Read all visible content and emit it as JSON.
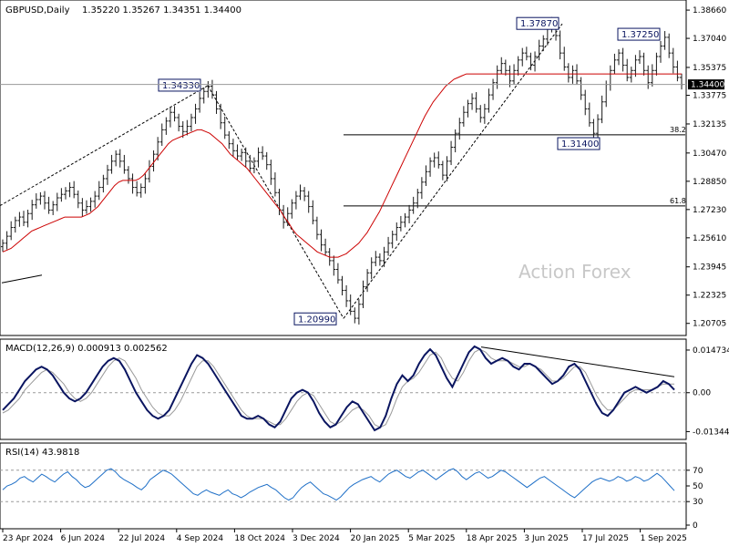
{
  "chart_data": {
    "type": "candlestick",
    "price_panel": {
      "title": "GBPUSD,Daily",
      "ohlc_text": "1.35220 1.35267 1.34351 1.34400",
      "y_ticks": [
        "1.38660",
        "1.37040",
        "1.35375",
        "1.33775",
        "1.32135",
        "1.30470",
        "1.28850",
        "1.27230",
        "1.25610",
        "1.23945",
        "1.22325",
        "1.20705"
      ],
      "y_range": [
        1.2022,
        1.3903
      ],
      "current_price": 1.344,
      "current_price_label": "1.34400",
      "watermark": "Action Forex",
      "annotations": [
        {
          "label": "1.20990",
          "value": 1.2099
        },
        {
          "label": "1.34330",
          "value": 1.3433
        },
        {
          "label": "1.37870",
          "value": 1.3787
        },
        {
          "label": "1.37250",
          "value": 1.3725
        },
        {
          "label": "1.31400",
          "value": 1.314
        }
      ],
      "fib_levels": [
        {
          "label": "38.2",
          "value": 1.3151
        },
        {
          "label": "61.8",
          "value": 1.2744
        }
      ],
      "ma_label": "",
      "closes": [
        1.253,
        1.257,
        1.262,
        1.266,
        1.268,
        1.265,
        1.27,
        1.275,
        1.278,
        1.28,
        1.276,
        1.272,
        1.275,
        1.279,
        1.281,
        1.283,
        1.285,
        1.281,
        1.276,
        1.272,
        1.274,
        1.277,
        1.28,
        1.285,
        1.29,
        1.295,
        1.3,
        1.304,
        1.3,
        1.295,
        1.29,
        1.285,
        1.282,
        1.285,
        1.29,
        1.297,
        1.304,
        1.311,
        1.318,
        1.323,
        1.328,
        1.325,
        1.32,
        1.317,
        1.32,
        1.325,
        1.33,
        1.336,
        1.34,
        1.343,
        1.338,
        1.33,
        1.322,
        1.315,
        1.31,
        1.306,
        1.303,
        1.305,
        1.3,
        1.296,
        1.3,
        1.305,
        1.303,
        1.298,
        1.29,
        1.282,
        1.272,
        1.265,
        1.27,
        1.276,
        1.28,
        1.283,
        1.28,
        1.274,
        1.266,
        1.258,
        1.252,
        1.248,
        1.243,
        1.238,
        1.232,
        1.226,
        1.22,
        1.214,
        1.21,
        1.218,
        1.228,
        1.236,
        1.242,
        1.245,
        1.243,
        1.248,
        1.253,
        1.258,
        1.262,
        1.265,
        1.268,
        1.272,
        1.276,
        1.282,
        1.288,
        1.294,
        1.3,
        1.302,
        1.298,
        1.292,
        1.3,
        1.308,
        1.316,
        1.322,
        1.328,
        1.333,
        1.336,
        1.33,
        1.325,
        1.33,
        1.338,
        1.345,
        1.352,
        1.356,
        1.352,
        1.346,
        1.352,
        1.358,
        1.362,
        1.36,
        1.355,
        1.36,
        1.366,
        1.37,
        1.376,
        1.379,
        1.372,
        1.362,
        1.354,
        1.348,
        1.352,
        1.346,
        1.338,
        1.33,
        1.322,
        1.316,
        1.324,
        1.334,
        1.344,
        1.352,
        1.358,
        1.362,
        1.355,
        1.348,
        1.352,
        1.358,
        1.36,
        1.352,
        1.345,
        1.352,
        1.36,
        1.366,
        1.371,
        1.362,
        1.354,
        1.348,
        1.344
      ],
      "ma": [
        1.248,
        1.249,
        1.25,
        1.252,
        1.254,
        1.256,
        1.258,
        1.26,
        1.261,
        1.262,
        1.263,
        1.264,
        1.265,
        1.266,
        1.267,
        1.268,
        1.268,
        1.268,
        1.268,
        1.268,
        1.269,
        1.27,
        1.272,
        1.274,
        1.277,
        1.28,
        1.283,
        1.286,
        1.288,
        1.289,
        1.289,
        1.289,
        1.289,
        1.29,
        1.292,
        1.295,
        1.298,
        1.301,
        1.304,
        1.307,
        1.31,
        1.312,
        1.313,
        1.314,
        1.315,
        1.316,
        1.317,
        1.318,
        1.318,
        1.317,
        1.316,
        1.314,
        1.312,
        1.31,
        1.307,
        1.304,
        1.302,
        1.3,
        1.298,
        1.296,
        1.293,
        1.29,
        1.287,
        1.284,
        1.281,
        1.278,
        1.275,
        1.272,
        1.268,
        1.265,
        1.261,
        1.258,
        1.256,
        1.254,
        1.252,
        1.25,
        1.248,
        1.247,
        1.246,
        1.245,
        1.245,
        1.245,
        1.246,
        1.247,
        1.249,
        1.251,
        1.253,
        1.256,
        1.259,
        1.263,
        1.267,
        1.271,
        1.276,
        1.281,
        1.286,
        1.291,
        1.296,
        1.301,
        1.306,
        1.311,
        1.316,
        1.321,
        1.326,
        1.33,
        1.334,
        1.337,
        1.34,
        1.343,
        1.345,
        1.347,
        1.348,
        1.349,
        1.35,
        1.35,
        1.35,
        1.35,
        1.35,
        1.35,
        1.35,
        1.35,
        1.35,
        1.35,
        1.35,
        1.35,
        1.35,
        1.35,
        1.35,
        1.35,
        1.35,
        1.35,
        1.35,
        1.35,
        1.35,
        1.35,
        1.35,
        1.35,
        1.35,
        1.35,
        1.35,
        1.35,
        1.35,
        1.35,
        1.35,
        1.35,
        1.35,
        1.35,
        1.35,
        1.35,
        1.35,
        1.35,
        1.35,
        1.35,
        1.35,
        1.35,
        1.35,
        1.35,
        1.35,
        1.35,
        1.35,
        1.35,
        1.35,
        1.35,
        1.35,
        1.35,
        1.35
      ]
    },
    "macd_panel": {
      "title": "MACD(12,26,9) 0.000913 0.002562",
      "y_ticks": [
        "0.014734",
        "0.00",
        "-0.013442"
      ],
      "y_range": [
        -0.0152,
        0.0163
      ],
      "macd": [
        -0.006,
        -0.004,
        -0.002,
        0.001,
        0.004,
        0.006,
        0.008,
        0.009,
        0.008,
        0.006,
        0.003,
        0.0,
        -0.002,
        -0.003,
        -0.002,
        0.0,
        0.003,
        0.006,
        0.009,
        0.011,
        0.012,
        0.011,
        0.008,
        0.004,
        0.0,
        -0.003,
        -0.006,
        -0.008,
        -0.009,
        -0.008,
        -0.006,
        -0.002,
        0.002,
        0.006,
        0.01,
        0.013,
        0.012,
        0.01,
        0.007,
        0.004,
        0.001,
        -0.002,
        -0.005,
        -0.008,
        -0.009,
        -0.009,
        -0.008,
        -0.009,
        -0.011,
        -0.012,
        -0.01,
        -0.006,
        -0.002,
        0.0,
        0.001,
        0.0,
        -0.003,
        -0.007,
        -0.01,
        -0.012,
        -0.011,
        -0.008,
        -0.005,
        -0.003,
        -0.004,
        -0.007,
        -0.01,
        -0.013,
        -0.012,
        -0.008,
        -0.002,
        0.003,
        0.006,
        0.004,
        0.006,
        0.01,
        0.013,
        0.015,
        0.013,
        0.009,
        0.005,
        0.002,
        0.006,
        0.01,
        0.014,
        0.016,
        0.015,
        0.012,
        0.01,
        0.011,
        0.012,
        0.011,
        0.009,
        0.008,
        0.01,
        0.01,
        0.009,
        0.007,
        0.005,
        0.003,
        0.004,
        0.006,
        0.009,
        0.01,
        0.008,
        0.004,
        0.0,
        -0.004,
        -0.007,
        -0.008,
        -0.006,
        -0.003,
        0.0,
        0.001,
        0.002,
        0.001,
        0.0,
        0.001,
        0.002,
        0.004,
        0.003,
        0.001
      ],
      "signal": [
        -0.007,
        -0.006,
        -0.004,
        -0.002,
        0.001,
        0.003,
        0.005,
        0.007,
        0.008,
        0.007,
        0.005,
        0.003,
        0.0,
        -0.002,
        -0.003,
        -0.002,
        0.0,
        0.003,
        0.006,
        0.009,
        0.011,
        0.012,
        0.011,
        0.008,
        0.005,
        0.001,
        -0.002,
        -0.005,
        -0.007,
        -0.008,
        -0.008,
        -0.006,
        -0.003,
        0.001,
        0.005,
        0.009,
        0.011,
        0.011,
        0.009,
        0.006,
        0.003,
        0.0,
        -0.003,
        -0.006,
        -0.008,
        -0.009,
        -0.009,
        -0.009,
        -0.01,
        -0.011,
        -0.011,
        -0.009,
        -0.006,
        -0.003,
        -0.001,
        0.0,
        -0.001,
        -0.004,
        -0.007,
        -0.01,
        -0.011,
        -0.01,
        -0.008,
        -0.006,
        -0.005,
        -0.006,
        -0.008,
        -0.011,
        -0.012,
        -0.011,
        -0.007,
        -0.002,
        0.002,
        0.004,
        0.005,
        0.007,
        0.01,
        0.013,
        0.014,
        0.012,
        0.008,
        0.005,
        0.004,
        0.007,
        0.011,
        0.014,
        0.015,
        0.014,
        0.012,
        0.011,
        0.011,
        0.011,
        0.01,
        0.009,
        0.009,
        0.01,
        0.009,
        0.008,
        0.006,
        0.004,
        0.004,
        0.005,
        0.007,
        0.009,
        0.009,
        0.007,
        0.003,
        -0.001,
        -0.004,
        -0.006,
        -0.006,
        -0.004,
        -0.002,
        0.0,
        0.001,
        0.001,
        0.001,
        0.001,
        0.002,
        0.003,
        0.003,
        0.003
      ]
    },
    "rsi_panel": {
      "title": "RSI(14) 43.9818",
      "y_ticks": [
        "70",
        "50",
        "30",
        "0"
      ],
      "y_range": [
        0,
        100
      ],
      "rsi": [
        45,
        50,
        52,
        55,
        60,
        62,
        58,
        55,
        60,
        65,
        62,
        58,
        55,
        60,
        65,
        68,
        62,
        58,
        52,
        48,
        50,
        55,
        60,
        65,
        70,
        72,
        68,
        62,
        58,
        55,
        52,
        48,
        45,
        50,
        58,
        62,
        66,
        70,
        68,
        65,
        60,
        55,
        50,
        45,
        40,
        38,
        42,
        45,
        42,
        40,
        38,
        42,
        45,
        40,
        38,
        35,
        38,
        42,
        45,
        48,
        50,
        52,
        48,
        45,
        40,
        35,
        32,
        35,
        42,
        48,
        52,
        55,
        50,
        45,
        40,
        38,
        35,
        32,
        36,
        42,
        48,
        52,
        55,
        58,
        60,
        62,
        58,
        55,
        60,
        65,
        68,
        70,
        66,
        62,
        60,
        64,
        68,
        70,
        66,
        62,
        58,
        62,
        66,
        70,
        72,
        68,
        62,
        58,
        62,
        66,
        68,
        64,
        60,
        62,
        66,
        70,
        68,
        64,
        60,
        56,
        52,
        48,
        52,
        56,
        60,
        62,
        58,
        54,
        50,
        46,
        42,
        38,
        35,
        40,
        45,
        50,
        55,
        58,
        60,
        58,
        56,
        58,
        62,
        60,
        56,
        58,
        62,
        60,
        56,
        58,
        62,
        66,
        62,
        56,
        50,
        44
      ]
    },
    "x_labels": [
      "23 Apr 2024",
      "6 Jun 2024",
      "22 Jul 2024",
      "4 Sep 2024",
      "18 Oct 2024",
      "3 Dec 2024",
      "20 Jan 2025",
      "5 Mar 2025",
      "18 Apr 2025",
      "3 Jun 2025",
      "17 Jul 2025",
      "1 Sep 2025"
    ]
  }
}
